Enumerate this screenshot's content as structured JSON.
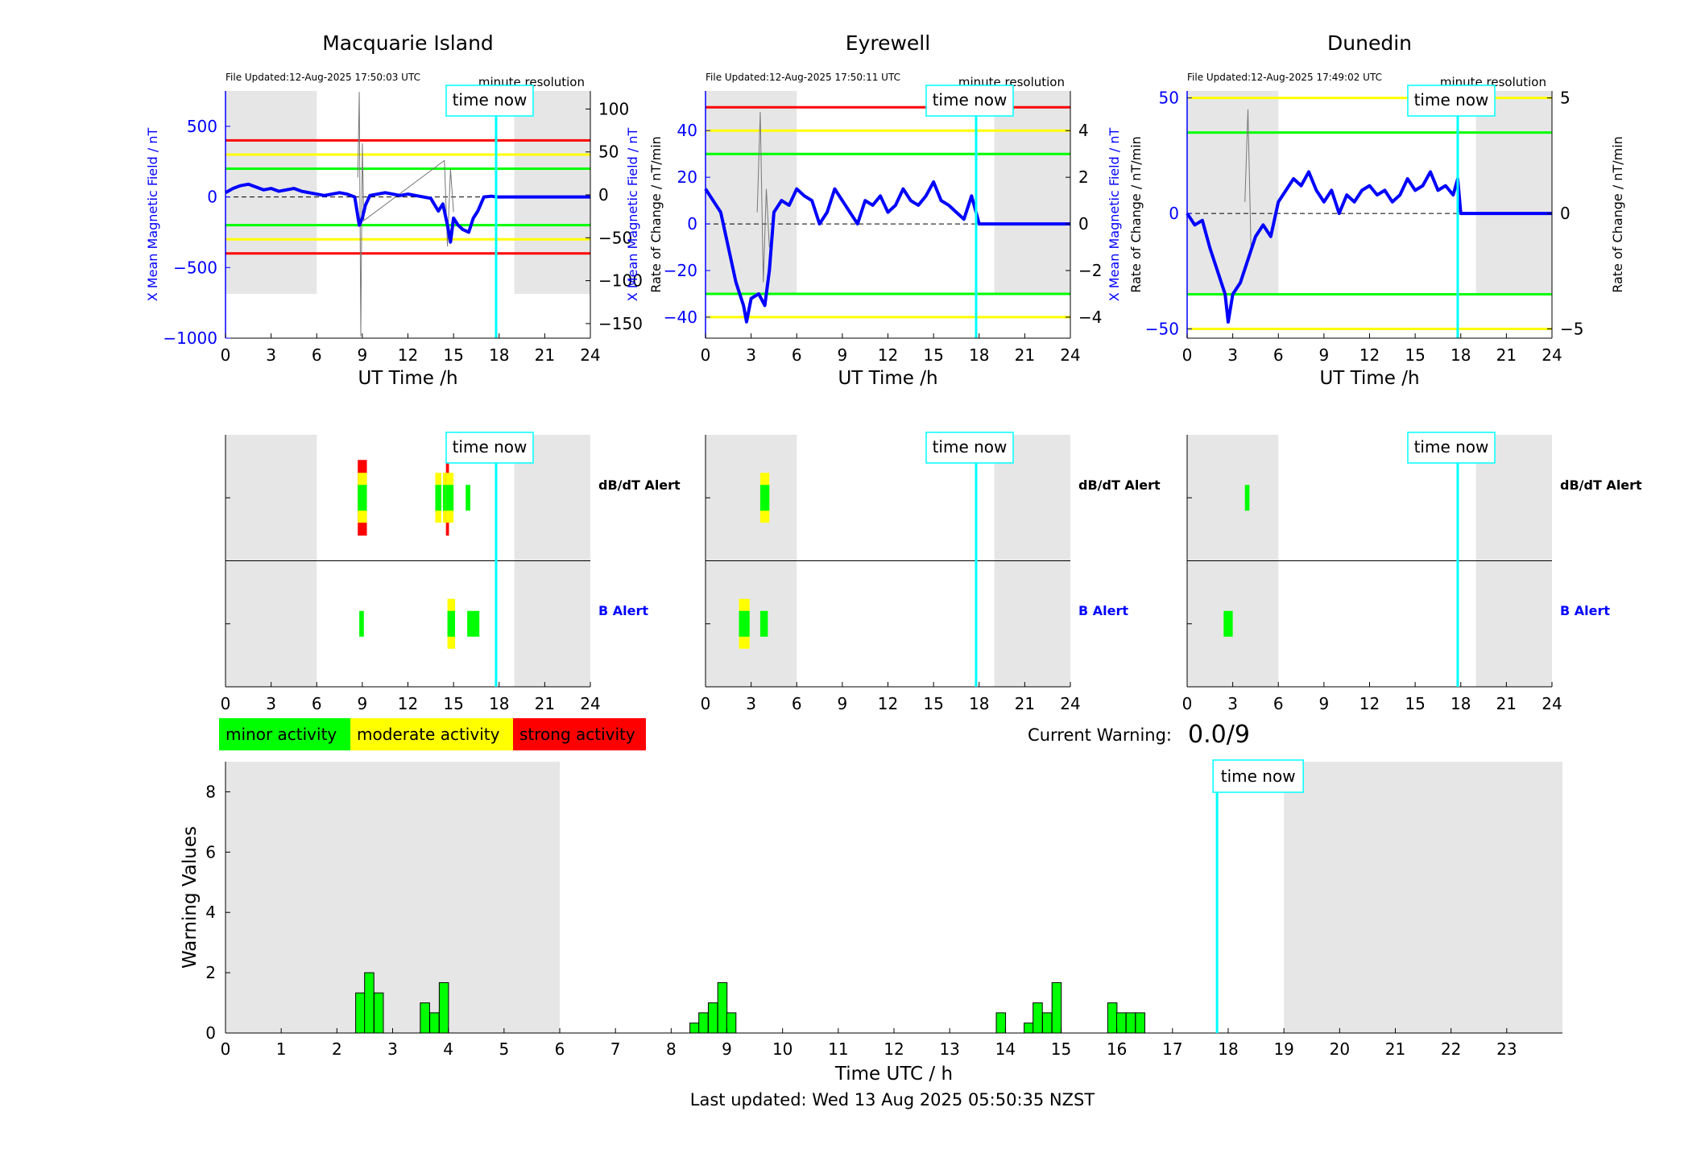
{
  "footer": {
    "last_updated": "Last updated: Wed 13 Aug 2025 05:50:35 NZST"
  },
  "current_warning": {
    "label": "Current Warning:",
    "value": "0.0/9"
  },
  "legend": [
    {
      "label": "minor activity",
      "color": "#00ff00"
    },
    {
      "label": "moderate activity",
      "color": "#ffff00"
    },
    {
      "label": "strong activity",
      "color": "#ff0000"
    }
  ],
  "colors": {
    "field_line": "#0000ff",
    "time_now": "#00ffff",
    "night_shade": "#e6e6e6",
    "threshold_minor": "#00ff00",
    "threshold_moderate": "#ffff00",
    "threshold_strong": "#ff0000"
  },
  "chart_data": [
    {
      "type": "line",
      "title": "Macquarie Island",
      "file_updated": "File Updated:12-Aug-2025 17:50:03 UTC",
      "resolution_note": "minute resolution",
      "time_now_label": "time now",
      "time_now": 17.8,
      "night": [
        [
          0,
          6
        ],
        [
          19,
          24
        ]
      ],
      "xlabel": "UT Time /h",
      "xticks": [
        0,
        3,
        6,
        9,
        12,
        15,
        18,
        21,
        24
      ],
      "xlim": [
        0,
        24
      ],
      "ylabel_left": "X Mean Magnetic Field / nT",
      "ylim_left": [
        -1000,
        750
      ],
      "yticks_left": [
        -1000,
        -500,
        0,
        500
      ],
      "ylabel_right": "Rate of Change / nT/min",
      "ylim_right": [
        -167,
        121
      ],
      "yticks_right": [
        -150,
        -100,
        -50,
        0,
        50,
        100
      ],
      "thresholds": [
        {
          "value": 400,
          "color": "#ff0000"
        },
        {
          "value": 300,
          "color": "#ffff00"
        },
        {
          "value": 200,
          "color": "#00ff00"
        },
        {
          "value": -200,
          "color": "#00ff00"
        },
        {
          "value": -300,
          "color": "#ffff00"
        },
        {
          "value": -400,
          "color": "#ff0000"
        }
      ],
      "field_series": {
        "x": [
          0,
          0.5,
          1,
          1.5,
          2,
          2.5,
          3,
          3.5,
          4,
          4.5,
          5,
          5.5,
          6,
          6.5,
          7,
          7.5,
          8,
          8.5,
          8.8,
          9,
          9.2,
          9.5,
          10,
          10.5,
          11,
          11.5,
          12,
          12.5,
          13,
          13.5,
          14,
          14.3,
          14.6,
          14.8,
          15,
          15.3,
          15.6,
          16,
          16.3,
          16.6,
          17,
          17.5,
          17.8,
          18,
          24
        ],
        "y": [
          30,
          60,
          80,
          90,
          70,
          50,
          60,
          40,
          50,
          60,
          40,
          30,
          20,
          10,
          20,
          30,
          20,
          0,
          -200,
          -150,
          -60,
          10,
          20,
          30,
          20,
          10,
          20,
          10,
          0,
          -10,
          -100,
          -50,
          -200,
          -320,
          -150,
          -200,
          -230,
          -250,
          -150,
          -100,
          0,
          5,
          0,
          0,
          0
        ]
      },
      "rate_series": {
        "x": [
          8.7,
          8.8,
          8.9,
          9.0,
          9.1,
          14.4,
          14.6,
          14.8,
          15.0
        ],
        "y": [
          20,
          120,
          -165,
          60,
          -30,
          40,
          -60,
          30,
          -20
        ]
      },
      "alerts": {
        "dbdt_label": "dB/dT Alert",
        "b_label": "B Alert",
        "dbdt": [
          {
            "start": 8.7,
            "end": 9.3,
            "levels": [
              "minor",
              "moderate",
              "strong"
            ]
          },
          {
            "start": 13.8,
            "end": 14.2,
            "levels": [
              "minor",
              "moderate"
            ]
          },
          {
            "start": 14.3,
            "end": 15.0,
            "levels": [
              "minor",
              "moderate"
            ]
          },
          {
            "start": 14.5,
            "end": 14.7,
            "levels": [
              "minor",
              "moderate",
              "strong"
            ]
          },
          {
            "start": 15.8,
            "end": 16.1,
            "levels": [
              "minor"
            ]
          }
        ],
        "b": [
          {
            "start": 8.8,
            "end": 9.1,
            "levels": [
              "minor"
            ]
          },
          {
            "start": 14.6,
            "end": 15.1,
            "levels": [
              "minor",
              "moderate"
            ]
          },
          {
            "start": 15.9,
            "end": 16.7,
            "levels": [
              "minor"
            ]
          }
        ]
      }
    },
    {
      "type": "line",
      "title": "Eyrewell",
      "file_updated": "File Updated:12-Aug-2025 17:50:11 UTC",
      "resolution_note": "minute resolution",
      "time_now_label": "time now",
      "time_now": 17.8,
      "night": [
        [
          0,
          6
        ],
        [
          19,
          24
        ]
      ],
      "xlabel": "UT Time /h",
      "xticks": [
        0,
        3,
        6,
        9,
        12,
        15,
        18,
        21,
        24
      ],
      "xlim": [
        0,
        24
      ],
      "ylabel_left": "X Mean Magnetic Field / nT",
      "ylim_left": [
        -49,
        57
      ],
      "yticks_left": [
        -40,
        -20,
        0,
        20,
        40
      ],
      "ylabel_right": "Rate of Change / nT/min",
      "ylim_right": [
        -4.9,
        5.7
      ],
      "yticks_right": [
        -4,
        -2,
        0,
        2,
        4
      ],
      "thresholds": [
        {
          "value": 50,
          "color": "#ff0000"
        },
        {
          "value": 40,
          "color": "#ffff00"
        },
        {
          "value": 30,
          "color": "#00ff00"
        },
        {
          "value": -30,
          "color": "#00ff00"
        },
        {
          "value": -40,
          "color": "#ffff00"
        }
      ],
      "field_series": {
        "x": [
          0,
          0.5,
          1,
          1.5,
          2,
          2.5,
          2.7,
          3,
          3.5,
          3.9,
          4.2,
          4.5,
          5,
          5.5,
          6,
          6.5,
          7,
          7.5,
          8,
          8.5,
          9,
          9.5,
          10,
          10.5,
          11,
          11.5,
          12,
          12.5,
          13,
          13.5,
          14,
          14.5,
          15,
          15.5,
          16,
          16.5,
          17,
          17.5,
          17.8,
          18,
          24
        ],
        "y": [
          15,
          10,
          5,
          -10,
          -25,
          -35,
          -42,
          -32,
          -30,
          -35,
          -20,
          5,
          10,
          8,
          15,
          12,
          10,
          0,
          5,
          15,
          10,
          5,
          0,
          10,
          8,
          12,
          5,
          8,
          15,
          10,
          8,
          12,
          18,
          10,
          8,
          5,
          2,
          12,
          5,
          0,
          0
        ]
      },
      "rate_series": {
        "x": [
          3.4,
          3.6,
          3.8,
          4.0,
          4.2
        ],
        "y": [
          0.5,
          4.8,
          -2.5,
          1.5,
          -1.0
        ]
      },
      "alerts": {
        "dbdt_label": "dB/dT Alert",
        "b_label": "B Alert",
        "dbdt": [
          {
            "start": 3.6,
            "end": 4.2,
            "levels": [
              "minor",
              "moderate"
            ]
          }
        ],
        "b": [
          {
            "start": 2.2,
            "end": 2.9,
            "levels": [
              "minor",
              "moderate"
            ]
          },
          {
            "start": 3.6,
            "end": 4.1,
            "levels": [
              "minor"
            ]
          }
        ]
      }
    },
    {
      "type": "line",
      "title": "Dunedin",
      "file_updated": "File Updated:12-Aug-2025 17:49:02 UTC",
      "resolution_note": "minute resolution",
      "time_now_label": "time now",
      "time_now": 17.8,
      "night": [
        [
          0,
          6
        ],
        [
          19,
          24
        ]
      ],
      "xlabel": "UT Time /h",
      "xticks": [
        0,
        3,
        6,
        9,
        12,
        15,
        18,
        21,
        24
      ],
      "xlim": [
        0,
        24
      ],
      "ylabel_left": "X Mean Magnetic Field / nT",
      "ylim_left": [
        -54,
        53
      ],
      "yticks_left": [
        -50,
        0,
        50
      ],
      "ylabel_right": "Rate of Change / nT/min",
      "ylim_right": [
        -5.4,
        5.3
      ],
      "yticks_right": [
        -5,
        0,
        5
      ],
      "thresholds": [
        {
          "value": 50,
          "color": "#ffff00"
        },
        {
          "value": 35,
          "color": "#00ff00"
        },
        {
          "value": -35,
          "color": "#00ff00"
        },
        {
          "value": -50,
          "color": "#ffff00"
        }
      ],
      "field_series": {
        "x": [
          0,
          0.5,
          1,
          1.5,
          2,
          2.5,
          2.7,
          3,
          3.5,
          4,
          4.5,
          5,
          5.5,
          6,
          6.5,
          7,
          7.5,
          8,
          8.5,
          9,
          9.5,
          10,
          10.5,
          11,
          11.5,
          12,
          12.5,
          13,
          13.5,
          14,
          14.5,
          15,
          15.5,
          16,
          16.5,
          17,
          17.5,
          17.8,
          18,
          24
        ],
        "y": [
          0,
          -5,
          -3,
          -15,
          -25,
          -35,
          -47,
          -35,
          -30,
          -20,
          -10,
          -5,
          -10,
          5,
          10,
          15,
          12,
          18,
          10,
          5,
          10,
          0,
          8,
          5,
          10,
          12,
          8,
          10,
          5,
          8,
          15,
          10,
          12,
          18,
          10,
          12,
          8,
          15,
          0,
          0
        ]
      },
      "rate_series": {
        "x": [
          3.8,
          4.0,
          4.2
        ],
        "y": [
          0.5,
          4.5,
          -1.5
        ]
      },
      "alerts": {
        "dbdt_label": "dB/dT Alert",
        "b_label": "B Alert",
        "dbdt": [
          {
            "start": 3.8,
            "end": 4.1,
            "levels": [
              "minor"
            ]
          }
        ],
        "b": [
          {
            "start": 2.4,
            "end": 3.0,
            "levels": [
              "minor"
            ]
          }
        ]
      }
    },
    {
      "type": "bar",
      "title": "",
      "xlabel": "Time UTC / h",
      "ylabel": "Warning Values",
      "xlim": [
        0,
        24
      ],
      "ylim": [
        0,
        9
      ],
      "xticks": [
        0,
        1,
        2,
        3,
        4,
        5,
        6,
        7,
        8,
        9,
        10,
        11,
        12,
        13,
        14,
        15,
        16,
        17,
        18,
        19,
        20,
        21,
        22,
        23
      ],
      "yticks": [
        0,
        2,
        4,
        6,
        8
      ],
      "time_now_label": "time now",
      "time_now": 17.8,
      "night": [
        [
          0,
          6
        ],
        [
          19,
          24
        ]
      ],
      "bar_width": 0.1667,
      "x": [
        2.42,
        2.58,
        2.75,
        3.58,
        3.75,
        3.92,
        8.42,
        8.58,
        8.75,
        8.92,
        9.08,
        13.92,
        14.42,
        14.58,
        14.75,
        14.92,
        15.92,
        16.08,
        16.25,
        16.42
      ],
      "values": [
        1.33,
        2.0,
        1.33,
        1.0,
        0.67,
        1.67,
        0.33,
        0.67,
        1.0,
        1.67,
        0.67,
        0.67,
        0.33,
        1.0,
        0.67,
        1.67,
        1.0,
        0.67,
        0.67,
        0.67
      ]
    }
  ]
}
